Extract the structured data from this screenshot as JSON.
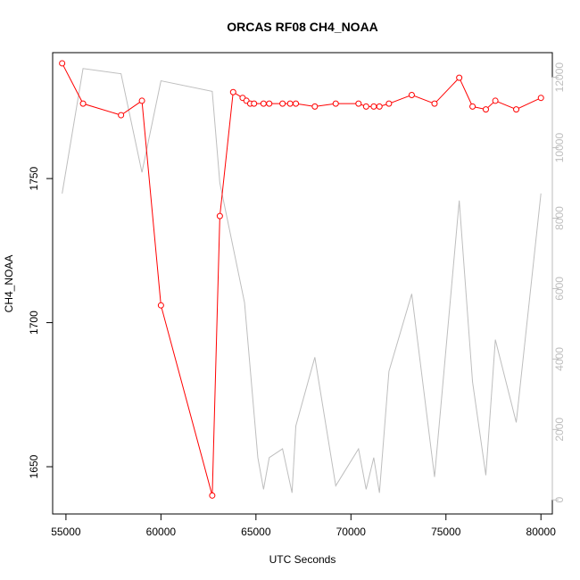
{
  "chart_data": {
    "type": "line",
    "title": "ORCAS RF08 CH4_NOAA",
    "xlabel": "UTC Seconds",
    "ylabel": "CH4_NOAA",
    "xlim": [
      54300,
      80600
    ],
    "ylim": [
      1633.6,
      1793.7
    ],
    "y2lim": [
      -400,
      12700
    ],
    "x_ticks": [
      55000,
      60000,
      65000,
      70000,
      75000,
      80000
    ],
    "y_ticks": [
      1650,
      1700,
      1750
    ],
    "y2_ticks": [
      0,
      2000,
      4000,
      6000,
      8000,
      10000,
      12000
    ],
    "grid": false,
    "legend": "none",
    "series": [
      {
        "axis": "left",
        "color": "#ff0000",
        "markers": "open-circle",
        "x": [
          54800,
          55900,
          57900,
          59000,
          60000,
          62700,
          63100,
          63800,
          64300,
          64500,
          64700,
          64900,
          65400,
          65700,
          66400,
          66800,
          67100,
          68100,
          69200,
          70400,
          70800,
          71200,
          71500,
          72000,
          73200,
          74400,
          75700,
          76400,
          77100,
          77600,
          78700,
          80000
        ],
        "y": [
          1790,
          1776,
          1772,
          1777,
          1706,
          1640,
          1737,
          1780,
          1778,
          1777,
          1776,
          1776,
          1776,
          1776,
          1776,
          1776,
          1776,
          1775,
          1776,
          1776,
          1775,
          1775,
          1775,
          1776,
          1779,
          1776,
          1785,
          1775,
          1774,
          1777,
          1774,
          1778
        ]
      },
      {
        "axis": "right",
        "color": "#bebebe",
        "markers": "none",
        "x": [
          54800,
          55900,
          57900,
          59000,
          60000,
          62700,
          63100,
          64400,
          65100,
          65400,
          65700,
          66400,
          66900,
          67100,
          68100,
          69200,
          70400,
          70800,
          71200,
          71500,
          72000,
          73200,
          74400,
          75700,
          76400,
          77100,
          77600,
          78700,
          80000
        ],
        "y": [
          8700,
          12250,
          12100,
          9300,
          11900,
          11600,
          9000,
          5600,
          1200,
          300,
          1200,
          1450,
          200,
          2100,
          4050,
          400,
          1450,
          300,
          1200,
          200,
          3650,
          5850,
          650,
          8500,
          3350,
          700,
          4550,
          2200,
          8700
        ]
      }
    ]
  }
}
